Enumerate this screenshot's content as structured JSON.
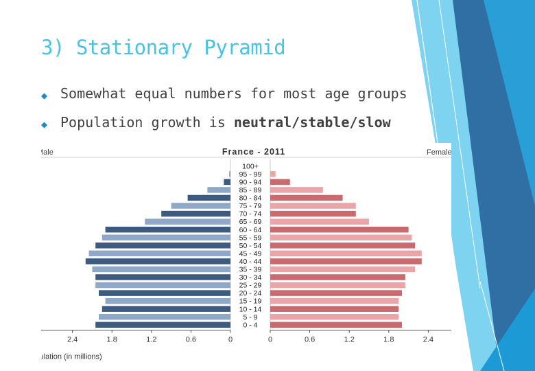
{
  "slide": {
    "title": "3) Stationary Pyramid",
    "bullets": [
      {
        "text": "Somewhat equal numbers for most age groups",
        "bold": ""
      },
      {
        "text": "Population growth is ",
        "bold": "neutral/stable/slow"
      }
    ]
  },
  "chart_data": {
    "type": "bar",
    "orientation": "horizontal-diverging",
    "title": "France - 2011",
    "left_label": "Male",
    "right_label": "Female",
    "xlabel": "Population (in millions)",
    "categories": [
      "100+",
      "95 - 99",
      "90 - 94",
      "85 - 89",
      "80 - 84",
      "75 - 79",
      "70 - 74",
      "65 - 69",
      "60 - 64",
      "55 - 59",
      "50 - 54",
      "45 - 49",
      "40 - 44",
      "35 - 39",
      "30 - 34",
      "25 - 29",
      "20 - 24",
      "15 - 19",
      "10 - 14",
      "5 - 9",
      "0 - 4"
    ],
    "series": [
      {
        "name": "Male",
        "values": [
          0.0,
          0.02,
          0.1,
          0.35,
          0.65,
          0.9,
          1.05,
          1.3,
          1.9,
          1.95,
          2.05,
          2.15,
          2.2,
          2.1,
          2.05,
          2.05,
          2.0,
          1.9,
          1.95,
          2.0,
          2.05
        ]
      },
      {
        "name": "Female",
        "values": [
          0.0,
          0.08,
          0.3,
          0.8,
          1.1,
          1.3,
          1.3,
          1.5,
          2.1,
          2.15,
          2.2,
          2.3,
          2.3,
          2.2,
          2.05,
          2.05,
          2.0,
          1.95,
          1.95,
          1.95,
          2.0
        ]
      }
    ],
    "xticks_left": [
      "2.4",
      "1.8",
      "1.2",
      "0.6",
      "0"
    ],
    "xticks_right": [
      "0",
      "0.6",
      "1.2",
      "1.8",
      "2.4"
    ],
    "xlim": [
      0,
      2.4
    ],
    "colors": {
      "male_dark": "#3d5a80",
      "male_light": "#8fa8c8",
      "female_dark": "#c96a6e",
      "female_light": "#eaa5a8"
    }
  },
  "theme": {
    "accent": "#49c3e3",
    "deco_light": "#7dd3f0",
    "deco_mid": "#2aa3dc",
    "deco_dark": "#2067a0"
  }
}
